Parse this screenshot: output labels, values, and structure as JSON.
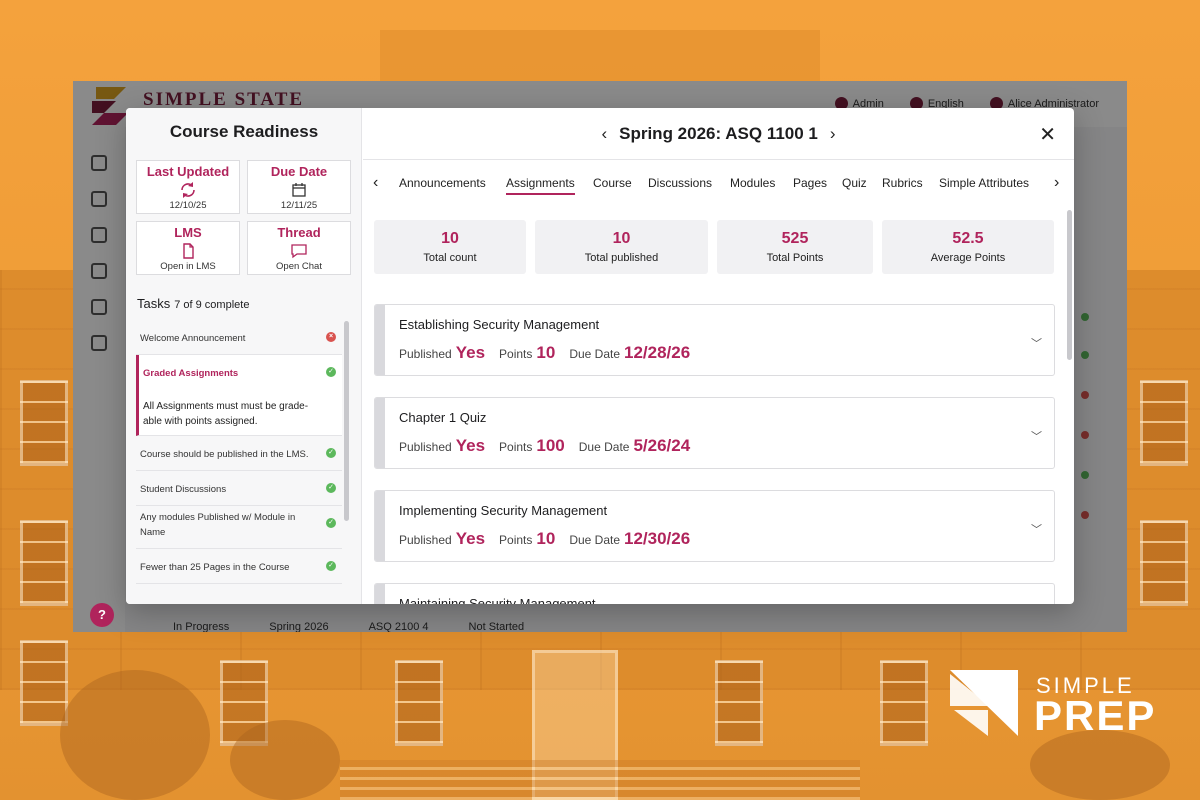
{
  "brand": {
    "line1": "SIMPLE",
    "line2": "PREP"
  },
  "app": {
    "title": "SIMPLE STATE",
    "top_links": [
      "Admin",
      "English",
      "Alice Administrator"
    ],
    "help_label": "?",
    "bg_row": [
      "In Progress",
      "Spring 2026",
      "ASQ 2100 4",
      "Not Started"
    ]
  },
  "readiness": {
    "title": "Course Readiness",
    "cards": {
      "last_updated": {
        "title": "Last Updated",
        "sub": "12/10/25"
      },
      "due_date": {
        "title": "Due Date",
        "sub": "12/11/25"
      },
      "lms": {
        "title": "LMS",
        "sub": "Open in LMS"
      },
      "thread": {
        "title": "Thread",
        "sub": "Open Chat"
      }
    },
    "tasks_label": "Tasks",
    "tasks_count": "7 of 9 complete",
    "tasks": [
      {
        "label": "Welcome Announcement",
        "status": "bad"
      },
      {
        "label": "Graded Assignments",
        "status": "ok",
        "desc": "All Assignments must must be grade-able with points assigned."
      },
      {
        "label": "Course should be published in the LMS.",
        "status": "ok"
      },
      {
        "label": "Student Discussions",
        "status": "ok"
      },
      {
        "label": "Any modules Published w/ Module in Name",
        "status": "ok"
      },
      {
        "label": "Fewer than 25 Pages in the Course",
        "status": "ok"
      }
    ]
  },
  "course": {
    "title": "Spring 2026: ASQ 1100 1",
    "tabs": [
      "Announcements",
      "Assignments",
      "Course",
      "Discussions",
      "Modules",
      "Pages",
      "Quiz",
      "Rubrics",
      "Simple Attributes"
    ],
    "selected_tab": "Assignments",
    "stats": [
      {
        "value": "10",
        "label": "Total count"
      },
      {
        "value": "10",
        "label": "Total published"
      },
      {
        "value": "525",
        "label": "Total Points"
      },
      {
        "value": "52.5",
        "label": "Average Points"
      }
    ],
    "field_labels": {
      "published": "Published",
      "points": "Points",
      "due": "Due Date"
    },
    "assignments": [
      {
        "name": "Establishing Security Management",
        "published": "Yes",
        "points": "10",
        "due": "12/28/26"
      },
      {
        "name": "Chapter 1 Quiz",
        "published": "Yes",
        "points": "100",
        "due": "5/26/24"
      },
      {
        "name": "Implementing Security Management",
        "published": "Yes",
        "points": "10",
        "due": "12/30/26"
      },
      {
        "name": "Maintaining Security Management"
      }
    ]
  },
  "colors": {
    "accent": "#b0245c",
    "backdrop": "#ef9c36",
    "ok": "#5cb85c",
    "bad": "#d9534f"
  }
}
